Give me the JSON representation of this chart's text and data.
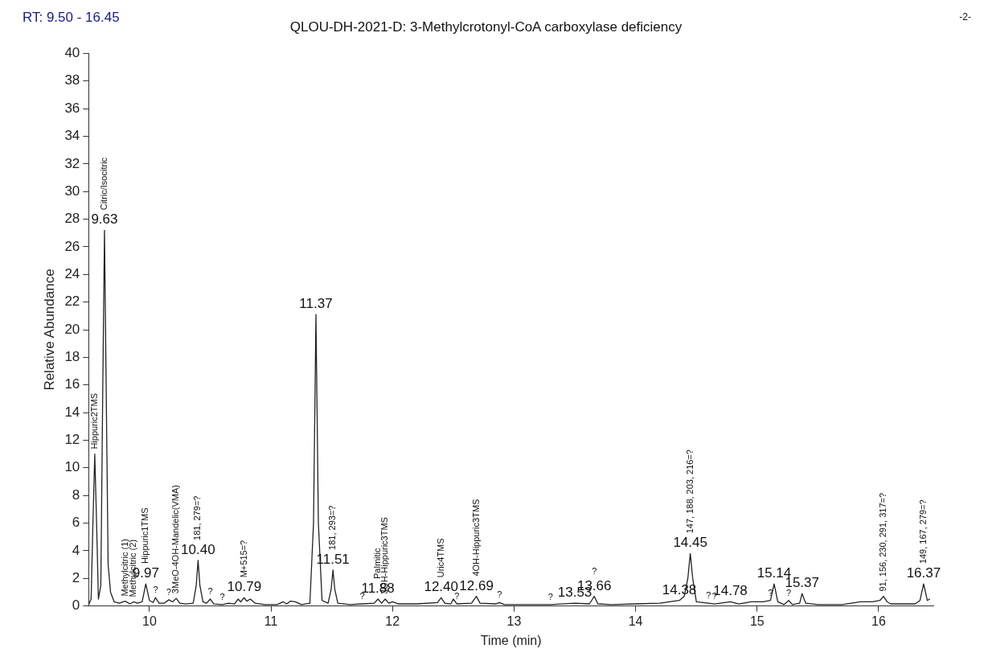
{
  "chart_data": {
    "type": "line",
    "title": "QLOU-DH-2021-D: 3-Methylcrotonyl-CoA carboxylase deficiency",
    "xlabel": "Time (min)",
    "ylabel": "Relative Abundance",
    "xlim": [
      9.5,
      16.45
    ],
    "xticks": [
      10,
      11,
      12,
      13,
      14,
      15,
      16
    ],
    "ylim": [
      0,
      40
    ],
    "yticks": [
      0,
      2,
      4,
      6,
      8,
      10,
      12,
      14,
      16,
      18,
      20,
      22,
      24,
      26,
      28,
      30,
      32,
      34,
      36,
      38,
      40
    ],
    "grid": false,
    "legend": false,
    "marker": "none",
    "line_style": "solid",
    "series": [
      {
        "color": "#222222",
        "x": [
          9.5,
          9.52,
          9.535,
          9.55,
          9.565,
          9.58,
          9.6,
          9.615,
          9.63,
          9.645,
          9.66,
          9.68,
          9.71,
          9.75,
          9.8,
          9.84,
          9.87,
          9.9,
          9.94,
          9.97,
          10.0,
          10.03,
          10.05,
          10.08,
          10.12,
          10.16,
          10.19,
          10.22,
          10.25,
          10.3,
          10.36,
          10.385,
          10.4,
          10.415,
          10.44,
          10.47,
          10.5,
          10.53,
          10.6,
          10.65,
          10.7,
          10.73,
          10.75,
          10.78,
          10.8,
          10.83,
          10.87,
          10.95,
          11.05,
          11.1,
          11.13,
          11.16,
          11.2,
          11.25,
          11.32,
          11.35,
          11.37,
          11.39,
          11.42,
          11.47,
          11.495,
          11.51,
          11.525,
          11.55,
          11.65,
          11.75,
          11.85,
          11.88,
          11.91,
          11.94,
          11.97,
          12.0,
          12.05,
          12.2,
          12.37,
          12.4,
          12.43,
          12.48,
          12.5,
          12.53,
          12.65,
          12.69,
          12.72,
          12.85,
          12.88,
          12.92,
          13.1,
          13.3,
          13.5,
          13.62,
          13.66,
          13.69,
          13.8,
          14.0,
          14.2,
          14.36,
          14.4,
          14.43,
          14.45,
          14.47,
          14.5,
          14.6,
          14.65,
          14.78,
          14.85,
          14.95,
          15.05,
          15.11,
          15.14,
          15.17,
          15.22,
          15.26,
          15.29,
          15.35,
          15.37,
          15.4,
          15.5,
          15.7,
          15.85,
          15.95,
          16.01,
          16.04,
          16.07,
          16.1,
          16.3,
          16.34,
          16.37,
          16.4,
          16.42
        ],
        "values": [
          0.1,
          0.5,
          6,
          11.0,
          6,
          0.5,
          1.5,
          15,
          27.2,
          15,
          3,
          1.0,
          0.3,
          0.2,
          0.35,
          0.15,
          0.3,
          0.2,
          0.3,
          1.6,
          0.4,
          0.25,
          0.6,
          0.2,
          0.2,
          0.45,
          0.3,
          0.55,
          0.2,
          0.15,
          0.2,
          1.5,
          3.3,
          1.5,
          0.3,
          0.2,
          0.5,
          0.15,
          0.1,
          0.2,
          0.15,
          0.5,
          0.3,
          0.6,
          0.35,
          0.5,
          0.2,
          0.1,
          0.1,
          0.3,
          0.15,
          0.35,
          0.3,
          0.1,
          0.2,
          6,
          21.1,
          6,
          0.4,
          0.2,
          1.2,
          2.6,
          1.2,
          0.2,
          0.1,
          0.15,
          0.2,
          0.5,
          0.2,
          0.5,
          0.2,
          0.3,
          0.15,
          0.15,
          0.25,
          0.6,
          0.2,
          0.15,
          0.5,
          0.15,
          0.2,
          0.7,
          0.2,
          0.15,
          0.25,
          0.1,
          0.1,
          0.1,
          0.2,
          0.15,
          0.7,
          0.15,
          0.1,
          0.15,
          0.2,
          0.4,
          0.7,
          2.0,
          3.8,
          2.0,
          0.3,
          0.2,
          0.15,
          0.3,
          0.15,
          0.3,
          0.3,
          0.4,
          1.6,
          0.3,
          0.1,
          0.4,
          0.1,
          0.2,
          0.9,
          0.2,
          0.1,
          0.1,
          0.3,
          0.3,
          0.4,
          0.7,
          0.3,
          0.15,
          0.15,
          0.4,
          1.6,
          0.4,
          0.5
        ]
      }
    ],
    "annotations": [
      "RT: 9.50 - 16.45",
      "-2-",
      {
        "text": "9.63",
        "x": 9.63,
        "y": 27.2
      },
      {
        "text": "9.97",
        "x": 9.97,
        "y": 1.6
      },
      {
        "text": "10.40",
        "x": 10.4,
        "y": 3.3
      },
      {
        "text": "10.79",
        "x": 10.78,
        "y": 0.6
      },
      {
        "text": "11.37",
        "x": 11.37,
        "y": 21.1
      },
      {
        "text": "11.51",
        "x": 11.51,
        "y": 2.6
      },
      {
        "text": "11.88",
        "x": 11.88,
        "y": 0.5
      },
      {
        "text": "12.40",
        "x": 12.4,
        "y": 0.6
      },
      {
        "text": "12.69",
        "x": 12.69,
        "y": 0.7
      },
      {
        "text": "13.53",
        "x": 13.5,
        "y": 0.2
      },
      {
        "text": "13.66",
        "x": 13.66,
        "y": 0.7
      },
      {
        "text": "14.38",
        "x": 14.36,
        "y": 0.4
      },
      {
        "text": "14.45",
        "x": 14.45,
        "y": 3.8
      },
      {
        "text": "14.78",
        "x": 14.78,
        "y": 0.3
      },
      {
        "text": "15.14",
        "x": 15.14,
        "y": 1.6
      },
      {
        "text": "15.37",
        "x": 15.37,
        "y": 0.9
      },
      {
        "text": "16.37",
        "x": 16.37,
        "y": 1.6
      },
      {
        "text": "Hippuric2TMS",
        "x": 9.55,
        "y": 11.0
      },
      {
        "text": "Citric/Isocitric",
        "x": 9.63,
        "y": 27.2
      },
      {
        "text": "Methylcitric (1)",
        "x": 9.8,
        "y": 0.35
      },
      {
        "text": "Methylcitric (2)",
        "x": 9.87,
        "y": 0.3
      },
      {
        "text": "Hippuric1TMS",
        "x": 9.97,
        "y": 1.6
      },
      {
        "text": "3MeO-4OH-Mandelic(VMA)",
        "x": 10.22,
        "y": 0.55
      },
      {
        "text": "181, 279=?",
        "x": 10.4,
        "y": 3.3
      },
      {
        "text": "M+515=?",
        "x": 10.78,
        "y": 0.6
      },
      {
        "text": "181, 293=?",
        "x": 11.51,
        "y": 2.6
      },
      {
        "text": "Palmitic",
        "x": 11.88,
        "y": 0.5
      },
      {
        "text": "3OH-Hippuric3TMS",
        "x": 11.94,
        "y": 0.5
      },
      {
        "text": "Uric4TMS",
        "x": 12.4,
        "y": 0.6
      },
      {
        "text": "4OH-Hippuric3TMS",
        "x": 12.69,
        "y": 0.7
      },
      {
        "text": "147, 188, 203, 216=?",
        "x": 14.45,
        "y": 3.8
      },
      {
        "text": "91, 156, 230, 291, 317=?",
        "x": 16.04,
        "y": 0.7
      },
      {
        "text": "149, 167, 279=?",
        "x": 16.37,
        "y": 1.6
      },
      {
        "text": "?",
        "x": 10.05,
        "y": 0.6
      },
      {
        "text": "?",
        "x": 10.16,
        "y": 0.45
      },
      {
        "text": "?",
        "x": 10.5,
        "y": 0.5
      },
      {
        "text": "?",
        "x": 10.6,
        "y": 0.1
      },
      {
        "text": "?",
        "x": 11.75,
        "y": 0.15
      },
      {
        "text": "?",
        "x": 12.53,
        "y": 0.15
      },
      {
        "text": "?",
        "x": 12.88,
        "y": 0.25
      },
      {
        "text": "?",
        "x": 13.3,
        "y": 0.1
      },
      {
        "text": "?",
        "x": 13.66,
        "y": 0.7
      },
      {
        "text": "?",
        "x": 14.6,
        "y": 0.2
      },
      {
        "text": "?",
        "x": 14.65,
        "y": 0.15
      },
      {
        "text": "?",
        "x": 15.11,
        "y": 0.4
      },
      {
        "text": "?",
        "x": 15.26,
        "y": 0.4
      }
    ]
  }
}
